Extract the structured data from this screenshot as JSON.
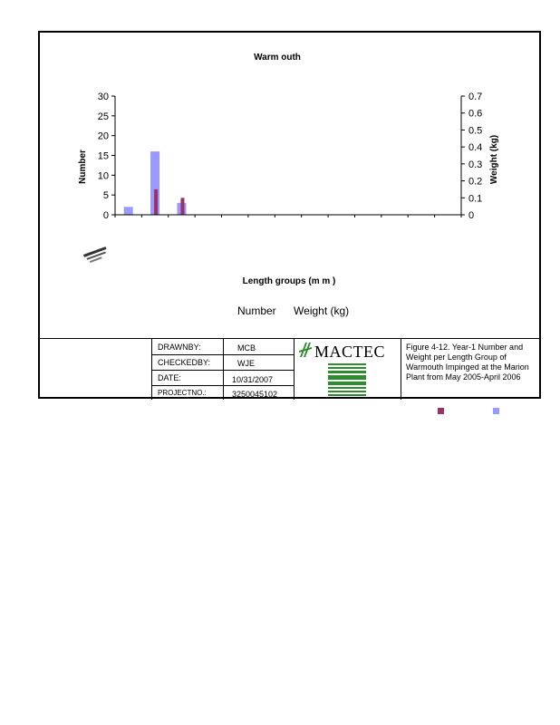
{
  "chart_data": {
    "type": "bar",
    "title": "Warm outh",
    "xlabel": "Length groups (m m )",
    "ylabel": "Number",
    "y2label": "Weight (kg)",
    "ylim": [
      0,
      30
    ],
    "y2lim": [
      0,
      0.7
    ],
    "yticks": [
      "0",
      "5",
      "10",
      "15",
      "20",
      "25",
      "30"
    ],
    "y2ticks": [
      "0",
      "0.1",
      "0.2",
      "0.3",
      "0.4",
      "0.5",
      "0.6",
      "0.7"
    ],
    "num_groups": 13,
    "series": [
      {
        "name": "Number",
        "axis": "left",
        "color": "#9999ff",
        "values": [
          2,
          16,
          3,
          0,
          0,
          0,
          0,
          0,
          0,
          0,
          0,
          0,
          0
        ]
      },
      {
        "name": "Weight (kg)",
        "axis": "right",
        "color": "#993366",
        "values": [
          0,
          0.15,
          0.1,
          0,
          0,
          0,
          0,
          0,
          0,
          0,
          0,
          0,
          0
        ]
      }
    ],
    "legend": "bottom",
    "grid": false
  },
  "legend": {
    "number": "Number",
    "weight": "Weight (kg)"
  },
  "title_block": {
    "drawn_by_label": "DRAWNBY:",
    "drawn_by": "MCB",
    "checked_by_label": "CHECKEDBY:",
    "checked_by": "WJE",
    "date_label": "DATE:",
    "date": "10/31/2007",
    "project_label": "PROJECTNO.:",
    "project_no": "3250045102",
    "logo_text": "MACTEC",
    "caption": "Figure 4-12. Year-1 Number and Weight per Length Group of Warmouth Impinged at the Marion Plant from May 2005-April 2006"
  },
  "colors": {
    "number": "#9999ff",
    "weight": "#993366",
    "logo": "#2e8b2e"
  }
}
